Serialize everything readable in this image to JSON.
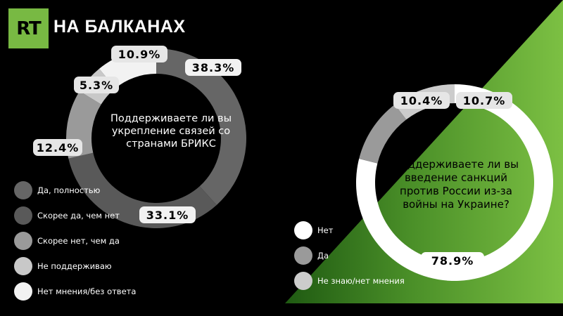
{
  "brand": {
    "logo_text": "RT",
    "name": "НА БАЛКАНАХ"
  },
  "colors": {
    "green": "#78b943",
    "green_light": "#8dc63f",
    "background": "#000000"
  },
  "chart_data": [
    {
      "type": "pie",
      "donut": true,
      "center_text": "Поддерживаете ли вы укрепление связей со странами БРИКС",
      "segments": [
        {
          "name": "Да, полностью",
          "value": 38.3,
          "label": "38.3%",
          "color": "#666666"
        },
        {
          "name": "Скорее да, чем нет",
          "value": 33.1,
          "label": "33.1%",
          "color": "#595959"
        },
        {
          "name": "Скорее нет, чем да",
          "value": 12.4,
          "label": "12.4%",
          "color": "#9a9a9a"
        },
        {
          "name": "Не поддерживаю",
          "value": 5.3,
          "label": "5.3%",
          "color": "#c8c8c8"
        },
        {
          "name": "Нет мнения/без ответа",
          "value": 10.9,
          "label": "10.9%",
          "color": "#f2f2f2"
        }
      ]
    },
    {
      "type": "pie",
      "donut": true,
      "center_text": "Поддерживаете ли вы введение санкций против России из-за войны на Украине?",
      "segments": [
        {
          "name": "Нет",
          "value": 78.9,
          "label": "78.9%",
          "color": "#ffffff"
        },
        {
          "name": "Да",
          "value": 10.7,
          "label": "10.7%",
          "color": "#9a9a9a"
        },
        {
          "name": "Не знаю/нет мнения",
          "value": 10.4,
          "label": "10.4%",
          "color": "#cccccc"
        }
      ]
    }
  ]
}
